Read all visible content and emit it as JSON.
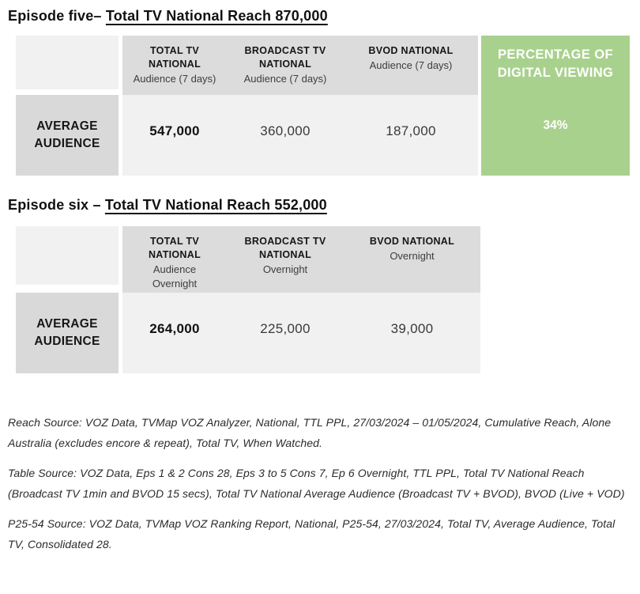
{
  "colors": {
    "accent_green": "#A9D18E",
    "header_gray": "#dcdcdc",
    "label_gray": "#d9d9d9",
    "cell_gray": "#f1f1f1"
  },
  "episode5": {
    "heading": {
      "prefix": "Episode five– ",
      "underlined": "Total TV National Reach 870,000"
    },
    "table": {
      "columns": [
        {
          "title_lines": [
            "TOTAL TV",
            "NATIONAL"
          ],
          "subtitle_lines": [
            "Audience (7 days)"
          ]
        },
        {
          "title_lines": [
            "BROADCAST TV",
            "NATIONAL"
          ],
          "subtitle_lines": [
            "Audience (7 days)"
          ]
        },
        {
          "title_lines": [
            "BVOD NATIONAL"
          ],
          "subtitle_lines": [
            "Audience (7 days)"
          ]
        }
      ],
      "row_label_lines": [
        "AVERAGE",
        "AUDIENCE"
      ],
      "values": [
        "547,000",
        "360,000",
        "187,000"
      ],
      "percentage": {
        "title_lines": [
          "PERCENTAGE OF",
          "DIGITAL VIEWING"
        ],
        "value": "34%"
      }
    }
  },
  "episode6": {
    "heading": {
      "prefix": "Episode six – ",
      "underlined": "Total TV National Reach 552,000"
    },
    "table": {
      "columns": [
        {
          "title_lines": [
            "TOTAL TV",
            "NATIONAL"
          ],
          "subtitle_lines": [
            "Audience",
            "Overnight"
          ]
        },
        {
          "title_lines": [
            "BROADCAST TV",
            "NATIONAL"
          ],
          "subtitle_lines": [
            "Overnight"
          ]
        },
        {
          "title_lines": [
            "BVOD NATIONAL"
          ],
          "subtitle_lines": [
            "Overnight"
          ]
        }
      ],
      "row_label_lines": [
        "AVERAGE",
        "AUDIENCE"
      ],
      "values": [
        "264,000",
        "225,000",
        "39,000"
      ]
    }
  },
  "footnotes": [
    "Reach Source: VOZ Data, TVMap VOZ Analyzer, National, TTL PPL, 27/03/2024 – 01/05/2024, Cumulative Reach, Alone Australia (excludes encore & repeat), Total TV, When Watched.",
    "Table Source: VOZ Data, Eps 1 & 2 Cons 28, Eps 3 to 5 Cons 7, Ep 6 Overnight, TTL PPL, Total TV National Reach (Broadcast TV 1min and BVOD 15 secs), Total TV National Average Audience (Broadcast TV + BVOD), BVOD (Live + VOD)",
    "P25-54 Source: VOZ Data, TVMap VOZ Ranking Report, National, P25-54, 27/03/2024, Total TV, Average Audience, Total TV, Consolidated 28."
  ]
}
